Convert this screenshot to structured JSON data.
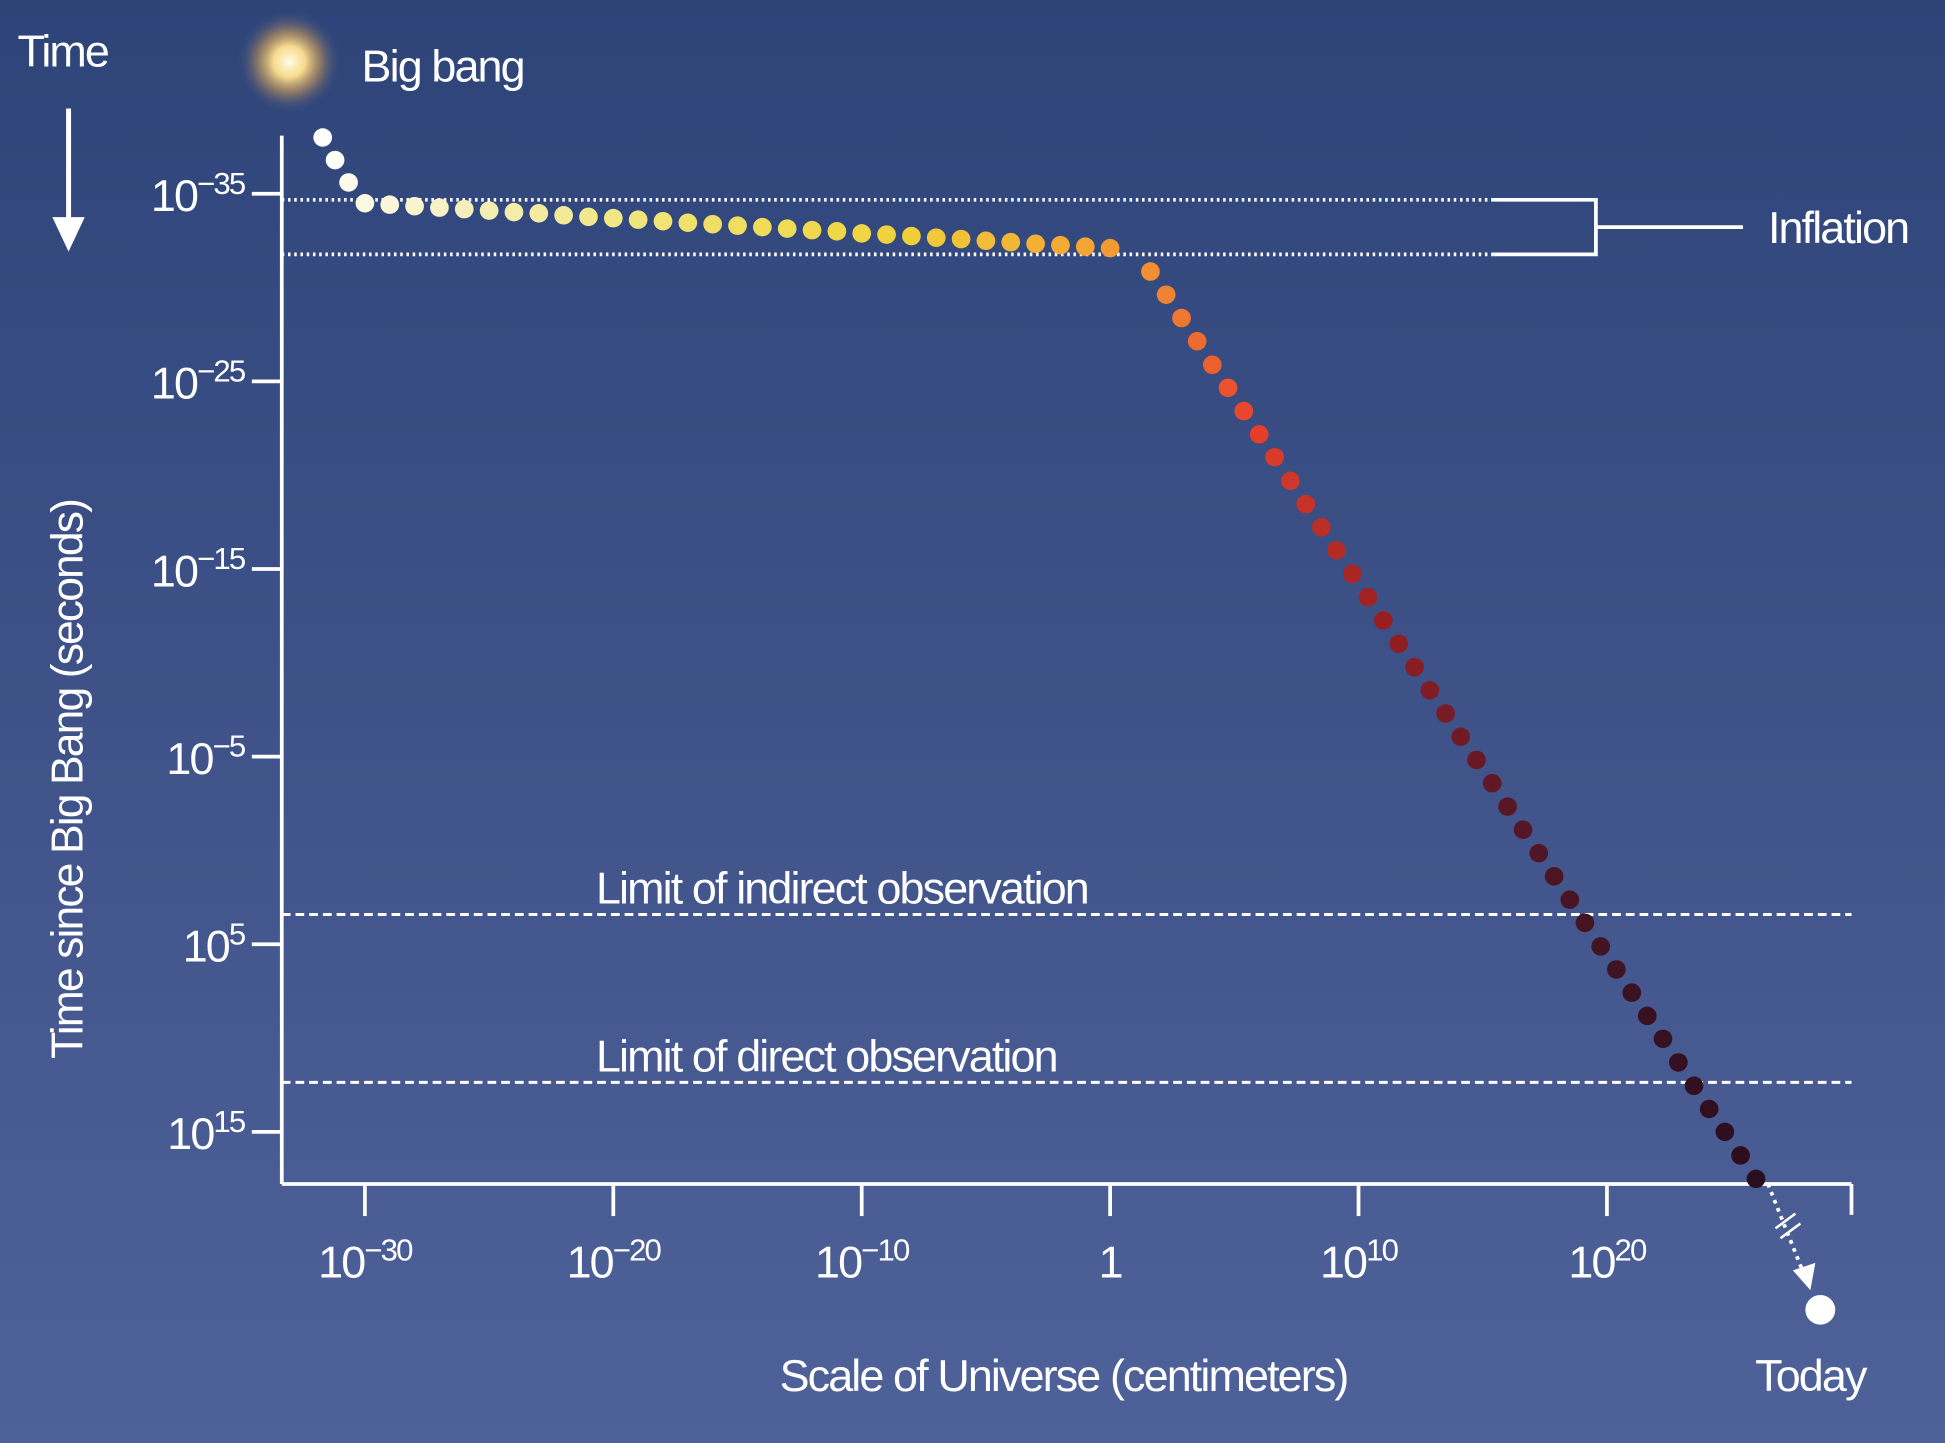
{
  "chart_data": {
    "type": "scatter",
    "xscale": "log",
    "yscale": "log",
    "y_inverted": true,
    "title_time": "Time",
    "big_bang": "Big bang",
    "today": "Today",
    "xlabel": "Scale of Universe (centimeters)",
    "ylabel": "Time since Big Bang (seconds)",
    "xlim": [
      4.5e-34,
      7e+29
    ],
    "ylim": [
      8e-39,
      6e+17
    ],
    "xticks": [
      {
        "value": 1e-30,
        "label": "10",
        "sup": "−30"
      },
      {
        "value": 1e-20,
        "label": "10",
        "sup": "−20"
      },
      {
        "value": 1e-10,
        "label": "10",
        "sup": "−10"
      },
      1,
      {
        "value": 10000000000.0,
        "label": "10",
        "sup": "10"
      },
      {
        "value": 1e+20,
        "label": "10",
        "sup": "20"
      }
    ],
    "yticks": [
      {
        "value": 1e-35,
        "label": "10",
        "sup": "−35"
      },
      {
        "value": 1e-25,
        "label": "10",
        "sup": "−25"
      },
      {
        "value": 1e-15,
        "label": "10",
        "sup": "−15"
      },
      {
        "value": 1e-05,
        "label": "10",
        "sup": "−5"
      },
      {
        "value": 100000.0,
        "label": "10",
        "sup": "5"
      },
      {
        "value": 1000000000000000.0,
        "label": "10",
        "sup": "15"
      }
    ],
    "color_stops": [
      "#ffffff",
      "#f3eeb0",
      "#efe26a",
      "#f0d23a",
      "#f4a233",
      "#e8402c",
      "#9a1f22",
      "#5a1726",
      "#3a1222",
      "#2b0e1e"
    ],
    "x": [
      2e-32,
      6.3e-32,
      2.2e-31,
      1e-30,
      1e-29,
      1e-28,
      1e-27,
      1e-26,
      1e-25,
      1e-24,
      1e-23,
      1e-22,
      1e-21,
      1e-20,
      1e-19,
      1e-18,
      1e-17,
      1e-16,
      1e-15,
      1e-14,
      1e-13,
      1e-12,
      1e-11,
      1e-10,
      1e-09,
      1e-08,
      1e-07,
      1e-06,
      1e-05,
      0.0001,
      0.001,
      0.01,
      0.1,
      1,
      42,
      180,
      750,
      3200,
      13000,
      56000,
      240000,
      1000000.0,
      4200000.0,
      18000000.0,
      75000000.0,
      320000000.0,
      1300000000.0,
      5600000000.0,
      24000000000.0,
      100000000000.0,
      420000000000.0,
      1800000000000.0,
      7500000000000.0,
      32000000000000.0,
      130000000000000.0,
      560000000000000.0,
      2400000000000000.0,
      1e+16,
      4.2e+16,
      1.8e+17,
      7.5e+17,
      3.2e+18,
      1.3e+19,
      5.6e+19,
      2.4e+20,
      1e+21,
      4.2e+21,
      1.8e+22,
      7.5e+22,
      3.2e+23,
      1.3e+24,
      5.6e+24,
      2.4e+25,
      1e+26
    ],
    "values": [
      1e-38,
      1.6e-37,
      2.5e-36,
      3.2e-35,
      3.8e-35,
      4.6e-35,
      5.5e-35,
      6.6e-35,
      7.9e-35,
      9.5e-35,
      1.1e-34,
      1.4e-34,
      1.7e-34,
      2e-34,
      2.4e-34,
      2.9e-34,
      3.5e-34,
      4.2e-34,
      5e-34,
      6e-34,
      7.2e-34,
      8.7e-34,
      1e-33,
      1.3e-33,
      1.5e-33,
      1.8e-33,
      2.2e-33,
      2.6e-33,
      3.2e-33,
      3.8e-33,
      4.6e-33,
      5.5e-33,
      6.6e-33,
      7.9e-33,
      1.4e-31,
      2.4e-30,
      4.2e-29,
      7.2e-28,
      1.3e-26,
      2.2e-25,
      3.8e-24,
      6.6e-23,
      1.1e-21,
      2e-20,
      3.5e-19,
      6e-18,
      1e-16,
      1.8e-15,
      3.2e-14,
      5.5e-13,
      9.5e-12,
      1.7e-10,
      2.9e-09,
      5e-08,
      8.7e-07,
      1.5e-05,
      0.00026,
      0.0046,
      0.079,
      1.4,
      24,
      420,
      7200,
      130000,
      2200000.0,
      38000000.0,
      660000000.0,
      11000000000.0,
      200000000000.0,
      3500000000000.0,
      60000000000000.0,
      1000000000000000.0,
      1.8e+16,
      3.2e+17
    ],
    "inflation": {
      "label": "Inflation",
      "y": [
        2.1e-35,
        1.7e-32
      ]
    },
    "reference_lines": [
      {
        "label": "Limit of indirect observation",
        "y": 2600
      },
      {
        "label": "Limit of direct observation",
        "y": 2300000000000.0
      }
    ]
  }
}
